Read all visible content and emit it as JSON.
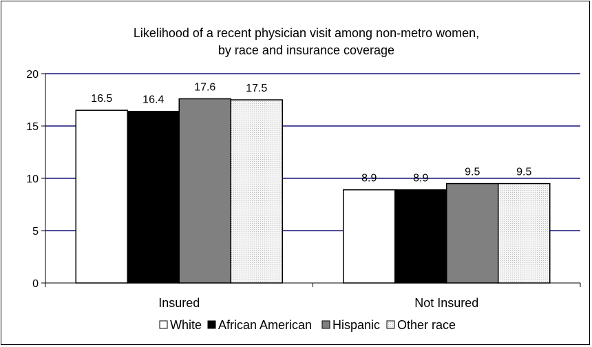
{
  "chart_data": {
    "type": "bar",
    "title": "Likelihood of a recent physician visit among non-metro women, by race and insurance coverage",
    "title_lines": [
      "Likelihood of a recent physician visit among non-metro women,",
      "by race and insurance coverage"
    ],
    "xlabel": "",
    "ylabel": "",
    "ylim": [
      0,
      20
    ],
    "yticks": [
      0,
      5,
      10,
      15,
      20
    ],
    "categories": [
      "Insured",
      "Not Insured"
    ],
    "series": [
      {
        "name": "White",
        "values": [
          16.5,
          8.9
        ],
        "color": "#ffffff"
      },
      {
        "name": "African American",
        "values": [
          16.4,
          8.9
        ],
        "color": "#000000"
      },
      {
        "name": "Hispanic",
        "values": [
          17.6,
          9.5
        ],
        "color": "#808080"
      },
      {
        "name": "Other race",
        "values": [
          17.5,
          9.5
        ],
        "color": "#ebebeb"
      }
    ],
    "grid": true,
    "gridline_color": "#4f4f9a",
    "legend_position": "bottom"
  }
}
